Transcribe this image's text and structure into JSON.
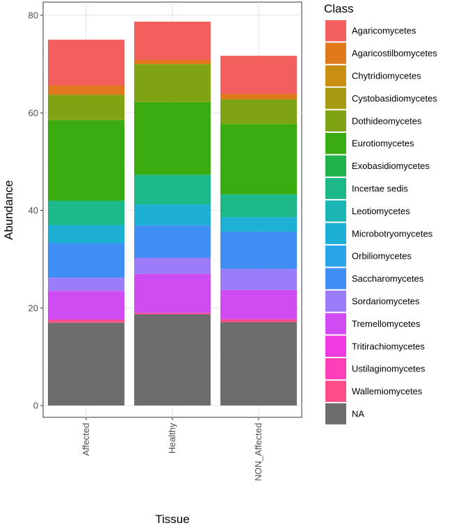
{
  "chart_data": {
    "type": "bar",
    "stacked": true,
    "xlabel": "Tissue",
    "ylabel": "Abundance",
    "legend_title": "Class",
    "legend_position": "right",
    "grid": true,
    "ylim": [
      0,
      80
    ],
    "yticks": [
      0,
      20,
      40,
      60,
      80
    ],
    "categories": [
      "Affected",
      "Healthy",
      "NON_Affected"
    ],
    "series": [
      {
        "name": "NA",
        "color": "#6d6d6d",
        "values": [
          17.0,
          18.7,
          17.1
        ]
      },
      {
        "name": "Wallemiomycetes",
        "color": "#ff4d8a",
        "values": [
          0.6,
          0.3,
          0.6
        ]
      },
      {
        "name": "Ustilaginomycetes",
        "color": "#ff3fb8",
        "values": [
          0.0,
          0.0,
          0.0
        ]
      },
      {
        "name": "Tritirachiomycetes",
        "color": "#f03be0",
        "values": [
          0.0,
          0.0,
          0.0
        ]
      },
      {
        "name": "Tremellomycetes",
        "color": "#cf4cf2",
        "values": [
          5.9,
          8.0,
          6.0
        ]
      },
      {
        "name": "Sordariomycetes",
        "color": "#9b7dfa",
        "values": [
          2.7,
          3.3,
          4.3
        ]
      },
      {
        "name": "Saccharomycetes",
        "color": "#3f8ef5",
        "values": [
          7.1,
          6.6,
          7.6
        ]
      },
      {
        "name": "Orbiliomycetes",
        "color": "#2aa6e8",
        "values": [
          0.0,
          0.0,
          0.0
        ]
      },
      {
        "name": "Microbotryomycetes",
        "color": "#1db0d4",
        "values": [
          3.7,
          4.3,
          3.0
        ]
      },
      {
        "name": "Leotiomycetes",
        "color": "#1bb5b3",
        "values": [
          0.0,
          0.0,
          0.0
        ]
      },
      {
        "name": "Incertae sedis",
        "color": "#1db88a",
        "values": [
          5.0,
          6.1,
          4.7
        ]
      },
      {
        "name": "Exobasidiomycetes",
        "color": "#22b24c",
        "values": [
          0.0,
          0.0,
          0.0
        ]
      },
      {
        "name": "Eurotiomycetes",
        "color": "#3aac0f",
        "values": [
          16.5,
          14.9,
          14.4
        ]
      },
      {
        "name": "Dothideomycetes",
        "color": "#7fa313",
        "values": [
          5.2,
          7.8,
          5.1
        ]
      },
      {
        "name": "Cystobasidiomycetes",
        "color": "#a69a12",
        "values": [
          0.0,
          0.0,
          0.0
        ]
      },
      {
        "name": "Chytridiomycetes",
        "color": "#c98f12",
        "values": [
          0.0,
          0.0,
          0.0
        ]
      },
      {
        "name": "Agaricostilbomycetes",
        "color": "#e0781c",
        "values": [
          1.9,
          0.8,
          1.1
        ]
      },
      {
        "name": "Agaricomycetes",
        "color": "#f25f5c",
        "values": [
          9.4,
          7.9,
          7.8
        ]
      }
    ]
  }
}
